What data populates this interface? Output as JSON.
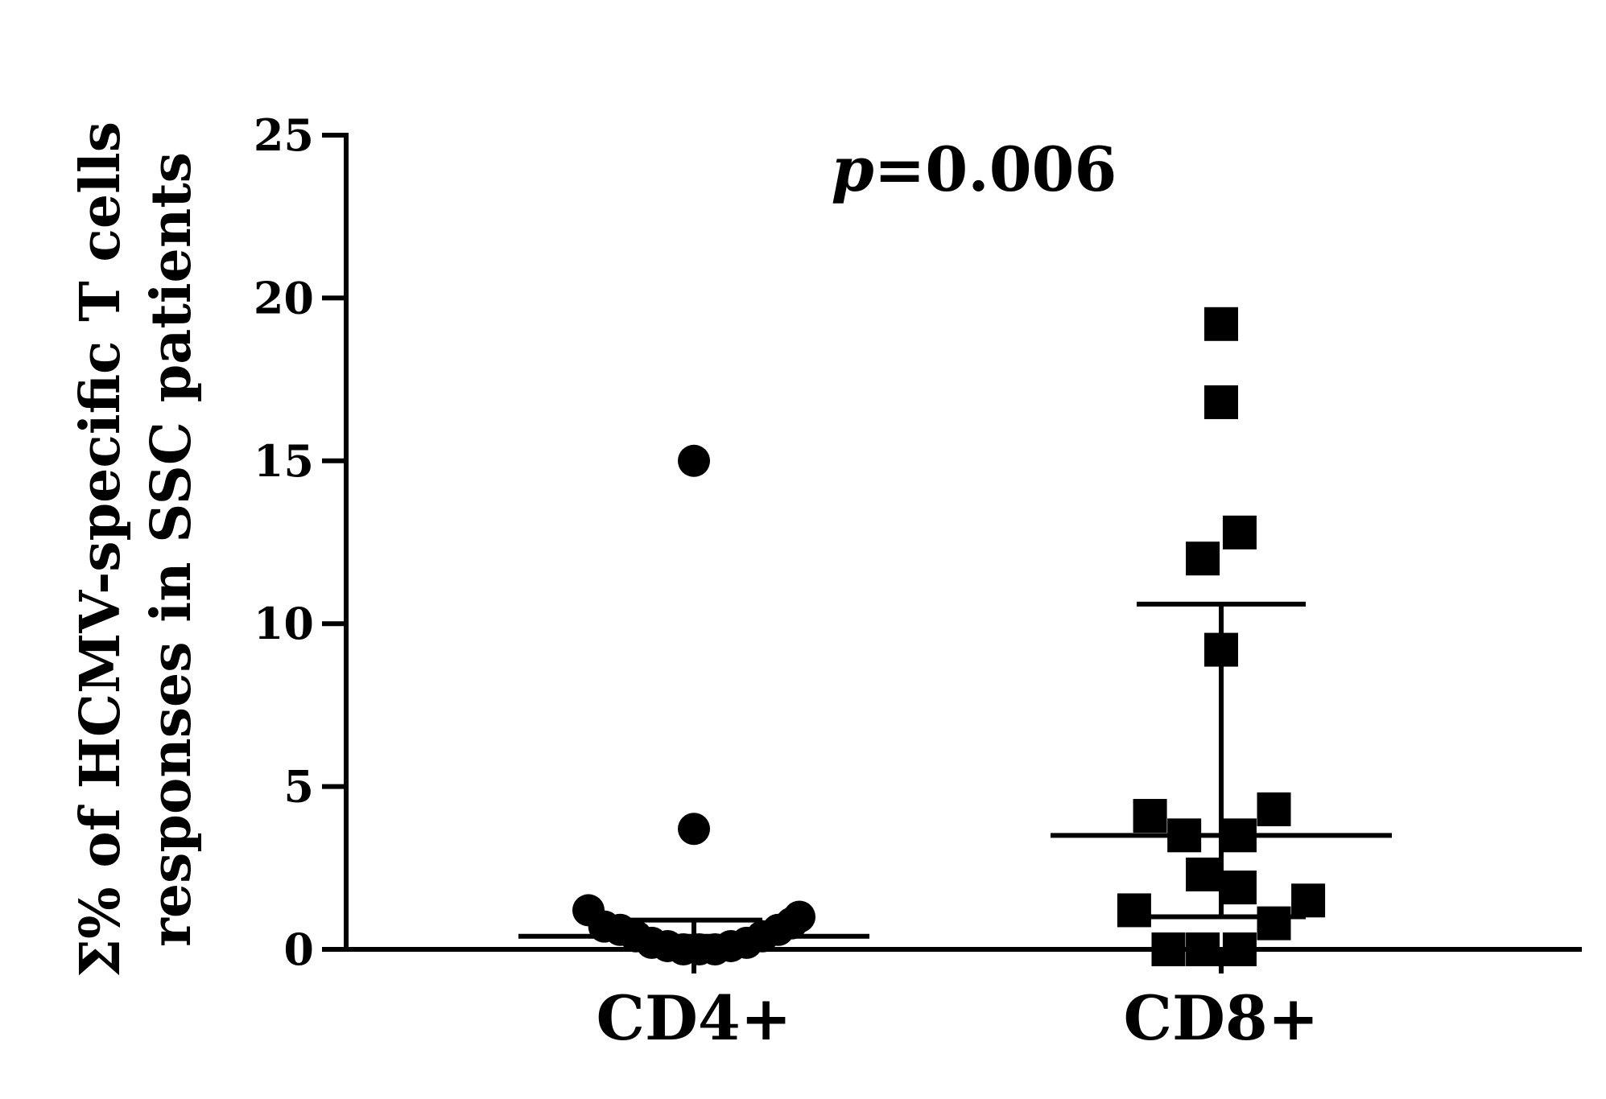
{
  "chart_data": {
    "type": "scatter",
    "ylabel_lines": [
      "Σ% of HCMV-specific T cells",
      "responses in SSC patients"
    ],
    "xlabel": "",
    "annotation": {
      "italic": "p",
      "text": "=0.006"
    },
    "ylim": [
      0,
      25
    ],
    "yticks": [
      0,
      5,
      10,
      15,
      20,
      25
    ],
    "categories": [
      "CD4+",
      "CD8+"
    ],
    "series": [
      {
        "category": "CD4+",
        "marker": "circle",
        "median": 0.4,
        "iqr": [
          0.0,
          0.9
        ],
        "points": [
          {
            "offset": 0.0,
            "y": 15.0
          },
          {
            "offset": 0.0,
            "y": 3.7
          },
          {
            "offset": -0.4,
            "y": 1.2
          },
          {
            "offset": -0.34,
            "y": 0.7
          },
          {
            "offset": -0.28,
            "y": 0.6
          },
          {
            "offset": -0.22,
            "y": 0.4
          },
          {
            "offset": -0.16,
            "y": 0.2
          },
          {
            "offset": -0.1,
            "y": 0.1
          },
          {
            "offset": -0.04,
            "y": 0.0
          },
          {
            "offset": 0.02,
            "y": 0.0
          },
          {
            "offset": 0.08,
            "y": 0.0
          },
          {
            "offset": 0.14,
            "y": 0.1
          },
          {
            "offset": 0.2,
            "y": 0.2
          },
          {
            "offset": 0.26,
            "y": 0.4
          },
          {
            "offset": 0.32,
            "y": 0.6
          },
          {
            "offset": 0.37,
            "y": 0.8
          },
          {
            "offset": 0.4,
            "y": 1.0
          }
        ]
      },
      {
        "category": "CD8+",
        "marker": "square",
        "median": 3.5,
        "iqr": [
          1.0,
          10.6
        ],
        "points": [
          {
            "offset": 0.0,
            "y": 19.2
          },
          {
            "offset": 0.0,
            "y": 16.8
          },
          {
            "offset": 0.07,
            "y": 12.8
          },
          {
            "offset": -0.07,
            "y": 12.0
          },
          {
            "offset": 0.0,
            "y": 9.2
          },
          {
            "offset": -0.27,
            "y": 4.1
          },
          {
            "offset": 0.2,
            "y": 4.3
          },
          {
            "offset": -0.14,
            "y": 3.5
          },
          {
            "offset": 0.07,
            "y": 3.5
          },
          {
            "offset": -0.07,
            "y": 2.3
          },
          {
            "offset": 0.07,
            "y": 1.9
          },
          {
            "offset": -0.33,
            "y": 1.2
          },
          {
            "offset": 0.33,
            "y": 1.5
          },
          {
            "offset": 0.2,
            "y": 0.8
          },
          {
            "offset": -0.2,
            "y": 0.0
          },
          {
            "offset": -0.07,
            "y": 0.0
          },
          {
            "offset": 0.07,
            "y": 0.0
          }
        ]
      }
    ]
  }
}
